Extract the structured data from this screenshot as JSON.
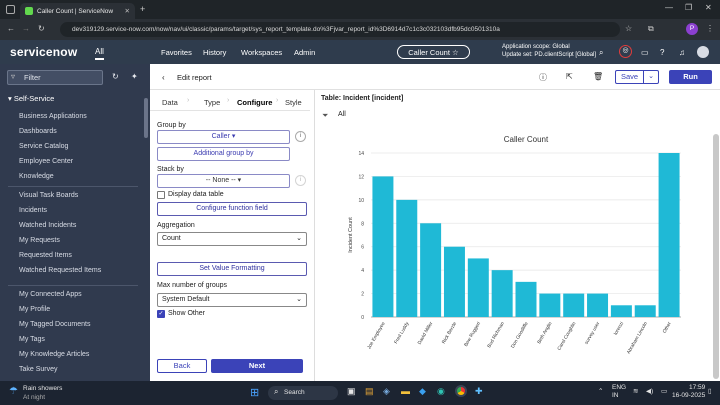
{
  "browser": {
    "tab_title": "Caller Count | ServiceNow",
    "url": "dev319129.service-now.com/now/nav/ui/classic/params/target/sys_report_template.do%3Fjvar_report_id%3D6914d7c1c3c032103dfb95dc0501310a"
  },
  "header": {
    "logo": "servicenow",
    "all": "All",
    "nav": [
      "Favorites",
      "History",
      "Workspaces",
      "Admin"
    ],
    "title": "Caller Count ☆",
    "scope_line1": "Application scope: Global",
    "scope_line2": "Update set: PD.clientScript [Global]",
    "avatar": "P"
  },
  "sidebar": {
    "filter": "Filter",
    "section": "Self-Service",
    "items_a": [
      "Business Applications",
      "Dashboards",
      "Service Catalog",
      "Employee Center",
      "Knowledge"
    ],
    "items_b": [
      "Visual Task Boards",
      "Incidents",
      "Watched Incidents",
      "My Requests",
      "Requested Items",
      "Watched Requested Items"
    ],
    "items_c": [
      "My Connected Apps",
      "My Profile",
      "My Tagged Documents",
      "My Tags",
      "My Knowledge Articles",
      "Take Survey"
    ]
  },
  "editor": {
    "back": "Edit report",
    "save": "Save",
    "run": "Run",
    "tabs": [
      "Data",
      "Type",
      "Configure",
      "Style"
    ],
    "group_by_label": "Group by",
    "group_by_value": "Caller ▾",
    "additional_group_by": "Additional group by",
    "stack_by_label": "Stack by",
    "stack_by_value": "-- None -- ▾",
    "display_data_table": "Display data table",
    "configure_function_field": "Configure function field",
    "aggregation_label": "Aggregation",
    "aggregation_value": "Count",
    "set_value_formatting": "Set Value Formatting",
    "max_groups_label": "Max number of groups",
    "max_groups_value": "System Default",
    "show_other": "Show Other",
    "back_button": "Back",
    "next_button": "Next"
  },
  "chart_panel": {
    "table_label": "Table: Incident [incident]",
    "filter_label": "All"
  },
  "chart_data": {
    "type": "bar",
    "title": "Caller Count",
    "ylabel": "Incident Count",
    "xlabel": "",
    "ylim": [
      0,
      14
    ],
    "yticks": [
      0,
      2,
      4,
      6,
      8,
      10,
      12,
      14
    ],
    "categories": [
      "Joe Employee",
      "Fred Luddy",
      "David Miller",
      "Rick Berzle",
      "Bow Ruggeri",
      "Bud Richman",
      "Don Goodliffe",
      "Beth Anglin",
      "Carol Coughlin",
      "survey user",
      "lorenzi",
      "Abraham Lincoln",
      "Other"
    ],
    "values": [
      12,
      10,
      8,
      6,
      5,
      4,
      3,
      2,
      2,
      2,
      1,
      1,
      14
    ],
    "color": "#1fb9d6",
    "grid": true
  },
  "taskbar": {
    "weather": "Rain showers",
    "weather_sub": "At night",
    "search": "Search",
    "lang1": "ENG",
    "lang2": "IN",
    "time": "17:59",
    "date": "16-09-2025"
  }
}
